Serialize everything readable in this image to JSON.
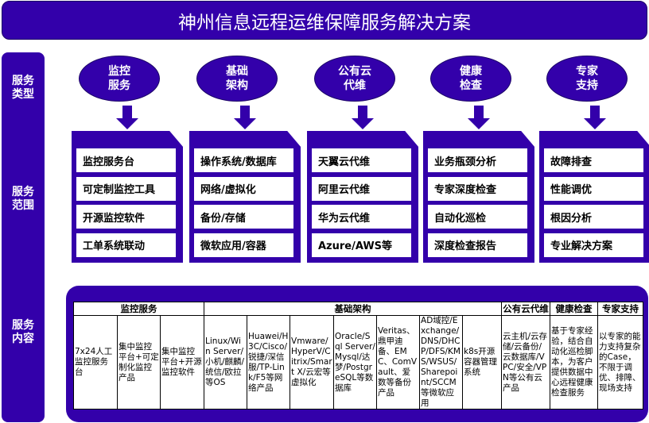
{
  "title": "神州信息远程运维保障服务解决方案",
  "colors": {
    "primary": "#3300aa",
    "item_bg": "#ffffff"
  },
  "sidebar": {
    "labels": [
      "服务\n类型",
      "服务\n范围",
      "服务\n内容"
    ]
  },
  "services": [
    {
      "type": "监控\n服务",
      "items": [
        "监控服务台",
        "可定制监控工具",
        "开源监控软件",
        "工单系统联动"
      ]
    },
    {
      "type": "基础\n架构",
      "items": [
        "操作系统/数据库",
        "网络/虚拟化",
        "备份/存储",
        "微软应用/容器"
      ]
    },
    {
      "type": "公有云\n代维",
      "items": [
        "天翼云代维",
        "阿里云代维",
        "华为云代维",
        "Azure/AWS等"
      ]
    },
    {
      "type": "健康\n检查",
      "items": [
        "业务瓶颈分析",
        "专家深度检查",
        "自动化巡检",
        "深度检查报告"
      ]
    },
    {
      "type": "专家\n支持",
      "items": [
        "故障排查",
        "性能调优",
        "根因分析",
        "专业解决方案"
      ]
    }
  ],
  "table": {
    "headers": [
      {
        "label": "监控服务",
        "span": 3
      },
      {
        "label": "基础架构",
        "span": 7
      },
      {
        "label": "公有云代维",
        "span": 1
      },
      {
        "label": "健康检查",
        "span": 1
      },
      {
        "label": "专家支持",
        "span": 1
      }
    ],
    "cells": [
      "7x24人工监控服务台",
      "集中监控平台+可定制化监控产品",
      "集中监控平台+开源监控软件",
      "Linux/Win Server/小机/麒麟/统信/欧拉等OS",
      "Huawei/H3C/Cisco/锐捷/深信服/TP-Link/F5等网络产品",
      "Vmware/HyperV/Citrix/Smart X/云宏等虚拟化",
      "Oracle/Sql Server/Mysql/达梦/PostgreSQL等数据库",
      "Veritas、鼎甲迪备、EMC、ComVault、爱数等备份产品",
      "AD域控/Exchange/DNS/DHCP/DFS/KMS/WSUS/Sharepoint/SCCM等微软应用",
      "k8s开源容器管理系统",
      "云主机/云存储/云备份/云数据库/VPC/安全/VPN等公有云产品",
      "基于专家经验，结合自动化巡检脚本，为客户提供数据中心远程健康检查服务",
      "以专家的能力支持复杂的Case，不限于调优、排障、现场支持"
    ]
  }
}
